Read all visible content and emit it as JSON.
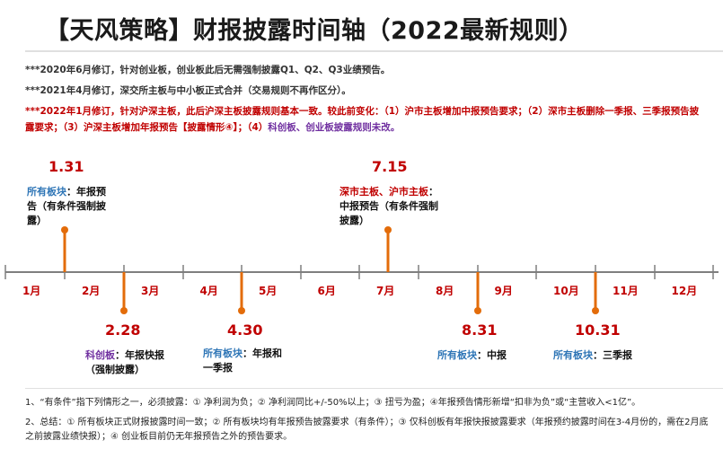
{
  "title": "【天风策略】财报披露时间轴（2022最新规则）",
  "notes": {
    "n1": "***2020年6月修订，针对创业板，创业板此后无需强制披露Q1、Q2、Q3业绩预告。",
    "n2": "***2021年4月修订，深交所主板与中小板正式合并（交易规则不再作区分）。",
    "n3_red": "***2022年1月修订，针对沪深主板，此后沪深主板披露规则基本一致。较此前变化：（1）沪市主板增加中报预告要求；（2）深市主板删除一季报、三季报预告披露要求；（3）沪深主板增加年报预告【披露情形④】；（4）",
    "n3_purple": "科创板、创业板披露规则未改。"
  },
  "months": [
    "1月",
    "2月",
    "3月",
    "4月",
    "5月",
    "6月",
    "7月",
    "8月",
    "9月",
    "10月",
    "11月",
    "12月"
  ],
  "events_top": [
    {
      "date": "1.31",
      "board": "所有板块",
      "desc": "：年报预告（有条件强制披露）"
    },
    {
      "date": "7.15",
      "board": "深市主板、沪市主板",
      "desc": "：中报预告（有条件强制披露）"
    }
  ],
  "events_bottom": [
    {
      "date": "2.28",
      "board": "科创板",
      "desc": "：年报快报（强制披露）"
    },
    {
      "date": "4.30",
      "board": "所有板块",
      "desc": "：年报和一季报"
    },
    {
      "date": "8.31",
      "board": "所有板块",
      "desc": "：中报"
    },
    {
      "date": "10.31",
      "board": "所有板块",
      "desc": "：三季报"
    }
  ],
  "footnotes": {
    "f1": "1、“有条件”指下列情形之一，必须披露：① 净利润为负；② 净利润同比+/-50%以上；③ 扭亏为盈；④年报预告情形新增“扣非为负”或“主营收入<1亿”。",
    "f2": "2、总结：① 所有板块正式财报披露时间一致；② 所有板块均有年报预告披露要求（有条件）；③ 仅科创板有年报快报披露要求（年报预约披露时间在3-4月份的，需在2月底之前披露业绩快报）；④ 创业板目前仍无年报预告之外的预告要求。"
  },
  "colors": {
    "accent_red": "#c00000",
    "orange": "#e36c0a",
    "blue": "#2e75b6",
    "purple": "#7030a0",
    "axis": "#7f7f7f"
  }
}
